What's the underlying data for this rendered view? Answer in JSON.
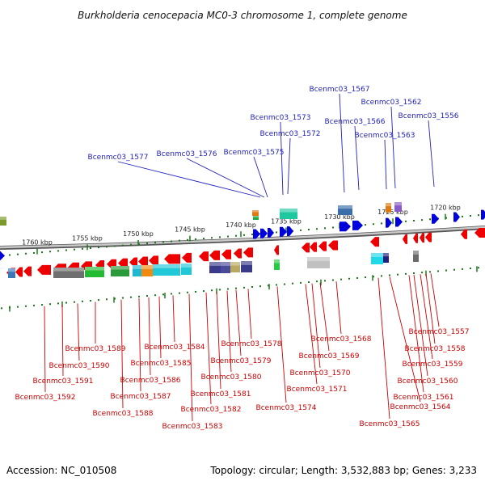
{
  "title": "Burkholderia cenocepacia MC0-3 chromosome 1, complete genome",
  "footer": {
    "accession": "Accession: NC_010508",
    "topology": "Topology: circular; Length: 3,532,883 bp; Genes: 3,233"
  },
  "colors": {
    "forward_arrow": "#0000dd",
    "reverse_arrow": "#ee0000",
    "top_label": "#2222bb",
    "bottom_label": "#cc0000",
    "tick": "#1a7a1a",
    "backbone": "#888888"
  },
  "scale_ticks": [
    "1760 kbp",
    "1755 kbp",
    "1750 kbp",
    "1745 kbp",
    "1740 kbp",
    "1735 kbp",
    "1730 kbp",
    "1725 kbp",
    "1720 kbp"
  ],
  "top_genes": [
    "Bcenmc03_1577",
    "Bcenmc03_1576",
    "Bcenmc03_1575",
    "Bcenmc03_1573",
    "Bcenmc03_1572",
    "Bcenmc03_1567",
    "Bcenmc03_1566",
    "Bcenmc03_1562",
    "Bcenmc03_1563",
    "Bcenmc03_1556"
  ],
  "bottom_genes": [
    "Bcenmc03_1592",
    "Bcenmc03_1591",
    "Bcenmc03_1590",
    "Bcenmc03_1589",
    "Bcenmc03_1588",
    "Bcenmc03_1587",
    "Bcenmc03_1586",
    "Bcenmc03_1585",
    "Bcenmc03_1584",
    "Bcenmc03_1583",
    "Bcenmc03_1582",
    "Bcenmc03_1581",
    "Bcenmc03_1580",
    "Bcenmc03_1579",
    "Bcenmc03_1578",
    "Bcenmc03_1574",
    "Bcenmc03_1571",
    "Bcenmc03_1570",
    "Bcenmc03_1569",
    "Bcenmc03_1568",
    "Bcenmc03_1565",
    "Bcenmc03_1564",
    "Bcenmc03_1561",
    "Bcenmc03_1560",
    "Bcenmc03_1559",
    "Bcenmc03_1558",
    "Bcenmc03_1557"
  ]
}
